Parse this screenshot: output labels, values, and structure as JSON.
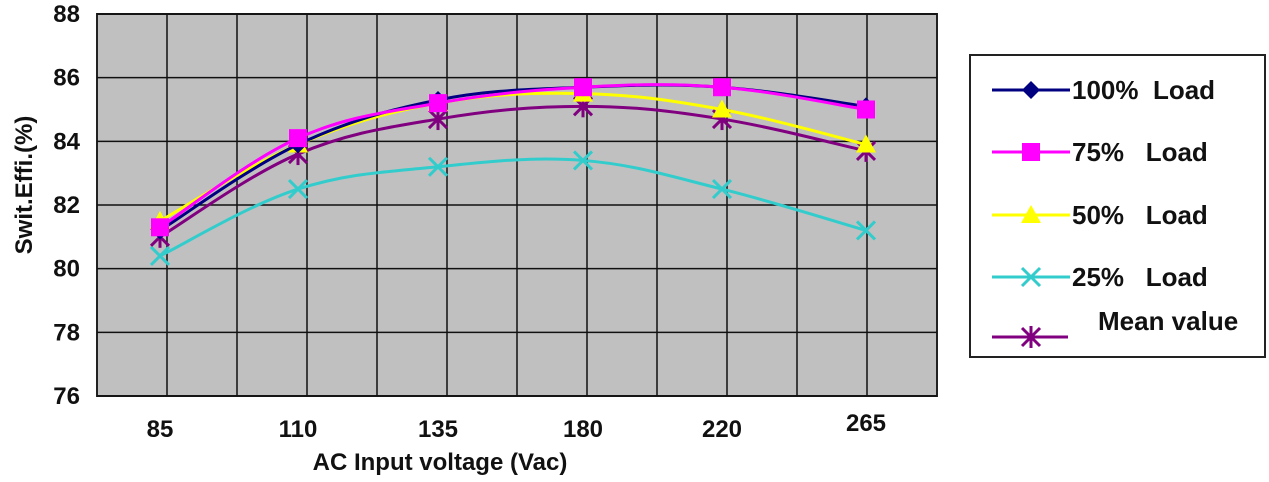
{
  "chart_data": {
    "type": "line",
    "title": "",
    "xlabel": "AC Input voltage (Vac)",
    "ylabel": "Swit.Effi.(%)",
    "categories": [
      "85",
      "110",
      "135",
      "180",
      "220",
      "265"
    ],
    "ylim": [
      76,
      88
    ],
    "yticks": [
      76,
      78,
      80,
      82,
      84,
      86,
      88
    ],
    "grid": true,
    "plot_background": "#c0c0c0",
    "legend_position": "right",
    "series": [
      {
        "name": "100%  Load",
        "color": "#000080",
        "marker": "diamond",
        "values": [
          81.2,
          83.9,
          85.3,
          85.7,
          85.7,
          85.1
        ]
      },
      {
        "name": "75%   Load",
        "color": "#ff00ff",
        "marker": "square",
        "values": [
          81.3,
          84.1,
          85.2,
          85.7,
          85.7,
          85.0
        ]
      },
      {
        "name": "50%   Load",
        "color": "#ffff00",
        "marker": "triangle",
        "values": [
          81.5,
          83.9,
          85.2,
          85.5,
          85.0,
          83.9
        ]
      },
      {
        "name": "25%   Load",
        "color": "#33cccc",
        "marker": "x",
        "values": [
          80.4,
          82.5,
          83.2,
          83.4,
          82.5,
          81.2
        ]
      },
      {
        "name": "Mean value",
        "color": "#800080",
        "marker": "asterisk",
        "values": [
          81.0,
          83.6,
          84.7,
          85.1,
          84.7,
          83.7
        ]
      }
    ]
  }
}
